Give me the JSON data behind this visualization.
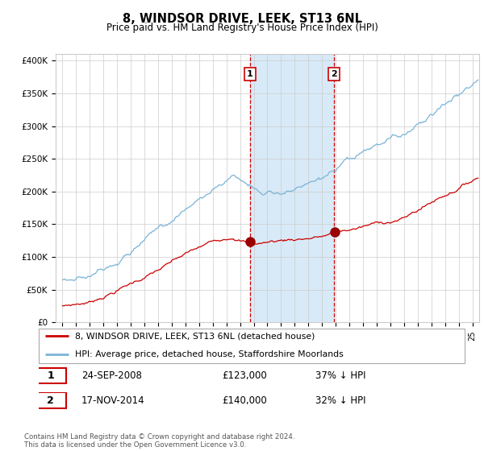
{
  "title": "8, WINDSOR DRIVE, LEEK, ST13 6NL",
  "subtitle": "Price paid vs. HM Land Registry's House Price Index (HPI)",
  "legend_line1": "8, WINDSOR DRIVE, LEEK, ST13 6NL (detached house)",
  "legend_line2": "HPI: Average price, detached house, Staffordshire Moorlands",
  "transaction1_date": "24-SEP-2008",
  "transaction1_price": "£123,000",
  "transaction1_hpi": "37% ↓ HPI",
  "transaction2_date": "17-NOV-2014",
  "transaction2_price": "£140,000",
  "transaction2_hpi": "32% ↓ HPI",
  "footer": "Contains HM Land Registry data © Crown copyright and database right 2024.\nThis data is licensed under the Open Government Licence v3.0.",
  "hpi_color": "#7ab4d8",
  "paid_color": "#cc0000",
  "marker_color": "#990000",
  "shade_color": "#d8eaf7",
  "vline_color": "#cc0000",
  "transaction1_x": 2008.73,
  "transaction2_x": 2014.88,
  "transaction1_y": 123000,
  "transaction2_y": 140000,
  "ylim": [
    0,
    410000
  ],
  "xlim_start": 1994.5,
  "xlim_end": 2025.5,
  "background_color": "#ffffff",
  "plot_bg_color": "#ffffff",
  "grid_color": "#cccccc"
}
